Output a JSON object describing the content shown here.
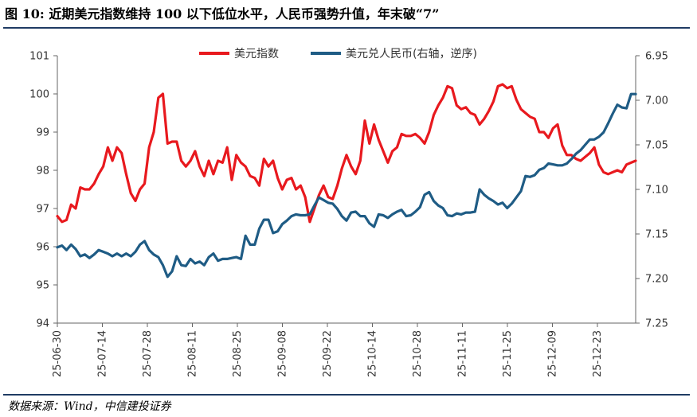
{
  "figure": {
    "title": "图 10: 近期美元指数维持 100 以下低位水平，人民币强势升值，年末破“7”",
    "source": "数据来源：Wind，中信建投证券"
  },
  "chart_data": {
    "type": "line",
    "x_tick_labels": [
      "25-06-30",
      "25-07-14",
      "25-07-28",
      "25-08-11",
      "25-08-25",
      "25-09-08",
      "25-09-22",
      "25-10-14",
      "25-10-28",
      "25-11-11",
      "25-11-25",
      "25-12-09",
      "25-12-23"
    ],
    "left_axis": {
      "ylim": [
        94,
        101
      ],
      "ticks": [
        94,
        95,
        96,
        97,
        98,
        99,
        100,
        101
      ]
    },
    "right_axis": {
      "ylim": [
        6.95,
        7.25
      ],
      "inverted": true,
      "ticks": [
        "6.95",
        "7.00",
        "7.05",
        "7.10",
        "7.15",
        "7.20",
        "7.25"
      ]
    },
    "legend_position": "top-center",
    "series": [
      {
        "name": "美元指数",
        "axis": "left",
        "color": "#e8191e",
        "values": [
          96.8,
          96.65,
          96.7,
          97.1,
          97.0,
          97.55,
          97.5,
          97.5,
          97.65,
          97.9,
          98.1,
          98.6,
          98.25,
          98.6,
          98.45,
          97.9,
          97.4,
          97.2,
          97.5,
          97.65,
          98.6,
          99.0,
          99.9,
          100.0,
          98.7,
          98.75,
          98.75,
          98.25,
          98.1,
          98.25,
          98.5,
          98.1,
          97.85,
          98.25,
          97.9,
          98.25,
          98.2,
          98.6,
          97.75,
          98.4,
          98.2,
          98.1,
          97.85,
          97.8,
          97.6,
          98.3,
          98.1,
          98.25,
          97.8,
          97.5,
          97.75,
          97.8,
          97.5,
          97.6,
          97.3,
          96.65,
          97.0,
          97.35,
          97.6,
          97.3,
          97.25,
          97.6,
          98.05,
          98.4,
          98.1,
          97.9,
          98.25,
          99.3,
          98.7,
          99.2,
          98.8,
          98.5,
          98.2,
          98.5,
          98.6,
          98.95,
          98.9,
          98.9,
          98.95,
          98.85,
          98.7,
          99.0,
          99.45,
          99.7,
          99.9,
          100.2,
          100.15,
          99.7,
          99.6,
          99.65,
          99.5,
          99.45,
          99.2,
          99.35,
          99.55,
          99.8,
          100.2,
          100.25,
          100.15,
          100.2,
          99.85,
          99.6,
          99.5,
          99.4,
          99.35,
          99.0,
          99.0,
          98.85,
          99.1,
          99.2,
          98.65,
          98.4,
          98.4,
          98.3,
          98.25,
          98.35,
          98.45,
          98.6,
          98.15,
          97.95,
          97.9,
          97.95,
          98.0,
          97.95,
          98.15,
          98.2,
          98.25
        ]
      },
      {
        "name": "美元兑人民币(右轴，逆序)",
        "axis": "right",
        "color": "#1f5c85",
        "values": [
          7.165,
          7.163,
          7.168,
          7.162,
          7.167,
          7.175,
          7.173,
          7.177,
          7.173,
          7.168,
          7.17,
          7.172,
          7.175,
          7.172,
          7.175,
          7.172,
          7.175,
          7.17,
          7.162,
          7.158,
          7.168,
          7.173,
          7.176,
          7.185,
          7.198,
          7.192,
          7.175,
          7.185,
          7.186,
          7.178,
          7.183,
          7.181,
          7.185,
          7.176,
          7.172,
          7.18,
          7.178,
          7.178,
          7.177,
          7.176,
          7.178,
          7.152,
          7.162,
          7.162,
          7.144,
          7.134,
          7.134,
          7.149,
          7.147,
          7.139,
          7.135,
          7.13,
          7.128,
          7.129,
          7.129,
          7.128,
          7.118,
          7.109,
          7.112,
          7.115,
          7.116,
          7.122,
          7.13,
          7.135,
          7.126,
          7.125,
          7.13,
          7.13,
          7.138,
          7.142,
          7.128,
          7.129,
          7.132,
          7.128,
          7.125,
          7.123,
          7.13,
          7.129,
          7.125,
          7.12,
          7.106,
          7.103,
          7.113,
          7.118,
          7.121,
          7.129,
          7.13,
          7.127,
          7.128,
          7.126,
          7.126,
          7.125,
          7.1,
          7.106,
          7.11,
          7.113,
          7.117,
          7.115,
          7.121,
          7.116,
          7.109,
          7.102,
          7.085,
          7.086,
          7.084,
          7.078,
          7.076,
          7.071,
          7.072,
          7.073,
          7.073,
          7.071,
          7.066,
          7.06,
          7.056,
          7.05,
          7.044,
          7.044,
          7.041,
          7.036,
          7.026,
          7.015,
          7.005,
          7.008,
          7.009,
          6.993,
          6.993
        ]
      }
    ]
  }
}
